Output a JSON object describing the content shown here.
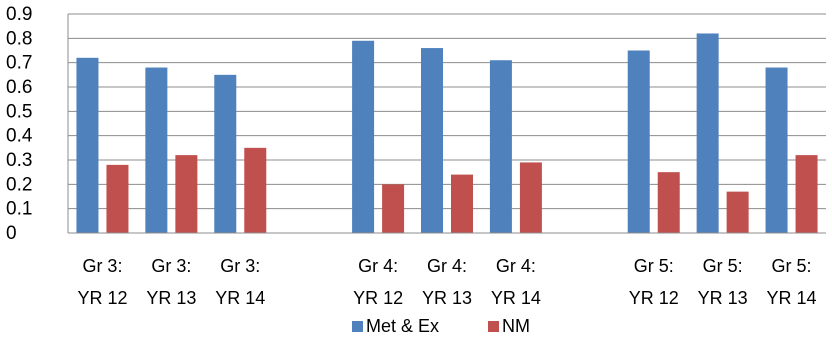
{
  "chart_data": {
    "type": "bar",
    "categories": [
      [
        "Gr 3:",
        "YR 12"
      ],
      [
        "Gr 3:",
        "YR 13"
      ],
      [
        "Gr 3:",
        "YR 14"
      ],
      [
        "",
        ""
      ],
      [
        "Gr 4:",
        "YR 12"
      ],
      [
        "Gr 4:",
        "YR 13"
      ],
      [
        "Gr 4:",
        "YR 14"
      ],
      [
        "",
        ""
      ],
      [
        "Gr 5:",
        "YR 12"
      ],
      [
        "Gr 5:",
        "YR 13"
      ],
      [
        "Gr 5:",
        "YR 14"
      ]
    ],
    "series": [
      {
        "name": "Met & Ex",
        "color": "#4F81BD",
        "values": [
          0.72,
          0.68,
          0.65,
          null,
          0.79,
          0.76,
          0.71,
          null,
          0.75,
          0.82,
          0.68
        ]
      },
      {
        "name": "NM",
        "color": "#C0504D",
        "values": [
          0.28,
          0.32,
          0.35,
          null,
          0.2,
          0.24,
          0.29,
          null,
          0.25,
          0.17,
          0.32
        ]
      }
    ],
    "yticks": [
      "0",
      "0.1",
      "0.2",
      "0.3",
      "0.4",
      "0.5",
      "0.6",
      "0.7",
      "0.8",
      "0.9"
    ],
    "ylim": [
      0,
      0.9
    ],
    "grid": true,
    "legend": "bottom",
    "title": "",
    "xlabel": "",
    "ylabel": ""
  }
}
